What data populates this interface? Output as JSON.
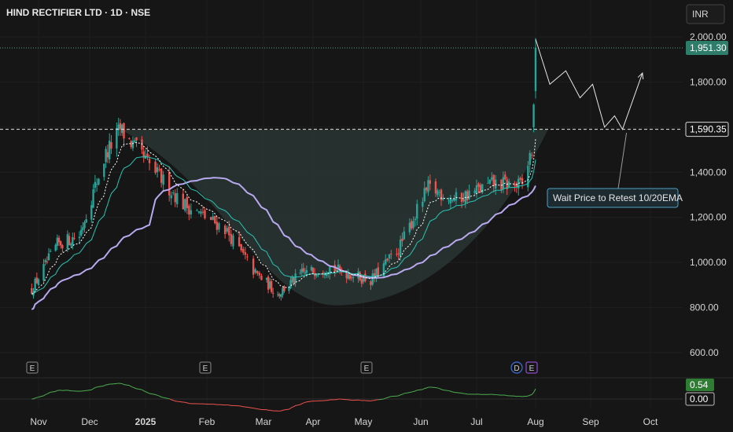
{
  "title": "HIND RECTIFIER LTD · 1D · NSE",
  "currency": "INR",
  "colors": {
    "up": "#26a69a",
    "down": "#ef5350",
    "ema_fast": "#ffffff",
    "ema_slow": "#26c6b6",
    "ma_long": "#b8a9f0",
    "osc_pos": "#4caf50",
    "osc_neg": "#ef5350",
    "last_price_tag": "#2e7d6b",
    "cup_fill": "#2c3a37"
  },
  "chart_data": {
    "type": "candlestick",
    "x_axis_labels": [
      "Nov",
      "Dec",
      "2025",
      "Feb",
      "Mar",
      "Apr",
      "May",
      "Jun",
      "Jul",
      "Aug",
      "Sep",
      "Oct"
    ],
    "y_ticks": [
      600,
      800,
      1000,
      1200,
      1400,
      1800,
      2000
    ],
    "y_tick_labels": [
      "600.00",
      "800.00",
      "1,000.00",
      "1,200.00",
      "1,400.00",
      "1,800.00",
      "2,000.00"
    ],
    "ylim": [
      540,
      2080
    ],
    "last_price": 1951.3,
    "last_price_label": "1,951.30",
    "resistance": 1590.35,
    "resistance_label": "1,590.35",
    "annotation": "Wait  Price to Retest 10/20EMA",
    "event_markers": [
      {
        "label": "E",
        "month": "Nov"
      },
      {
        "label": "E",
        "month": "Feb"
      },
      {
        "label": "E",
        "month": "May"
      },
      {
        "label": "D",
        "month": "Aug"
      },
      {
        "label": "E",
        "month": "Aug"
      }
    ],
    "price_path_anchors": [
      {
        "date": "2024-10-28",
        "close": 880
      },
      {
        "date": "2024-11-12",
        "close": 1080
      },
      {
        "date": "2024-11-25",
        "close": 1120
      },
      {
        "date": "2024-12-10",
        "close": 1480
      },
      {
        "date": "2024-12-18",
        "close": 1590
      },
      {
        "date": "2025-01-06",
        "close": 1400
      },
      {
        "date": "2025-01-20",
        "close": 1260
      },
      {
        "date": "2025-02-10",
        "close": 1150
      },
      {
        "date": "2025-02-25",
        "close": 950
      },
      {
        "date": "2025-03-10",
        "close": 860
      },
      {
        "date": "2025-03-25",
        "close": 950
      },
      {
        "date": "2025-04-10",
        "close": 980
      },
      {
        "date": "2025-05-05",
        "close": 920
      },
      {
        "date": "2025-05-20",
        "close": 1060
      },
      {
        "date": "2025-06-05",
        "close": 1330
      },
      {
        "date": "2025-06-20",
        "close": 1280
      },
      {
        "date": "2025-07-10",
        "close": 1350
      },
      {
        "date": "2025-07-25",
        "close": 1340
      },
      {
        "date": "2025-07-30",
        "close": 1500
      },
      {
        "date": "2025-08-01",
        "close": 1951.3
      }
    ],
    "projection_path": [
      {
        "date": "2025-08-01",
        "price": 1990
      },
      {
        "date": "2025-08-09",
        "price": 1790
      },
      {
        "date": "2025-08-18",
        "price": 1850
      },
      {
        "date": "2025-08-26",
        "price": 1730
      },
      {
        "date": "2025-09-02",
        "price": 1790
      },
      {
        "date": "2025-09-08",
        "price": 1600
      },
      {
        "date": "2025-09-13",
        "price": 1650
      },
      {
        "date": "2025-09-17",
        "price": 1590
      },
      {
        "date": "2025-09-27",
        "price": 1840
      }
    ],
    "oscillator": {
      "last_value": 0.54,
      "last_label": "0.54",
      "zero_label": "0.00"
    }
  }
}
